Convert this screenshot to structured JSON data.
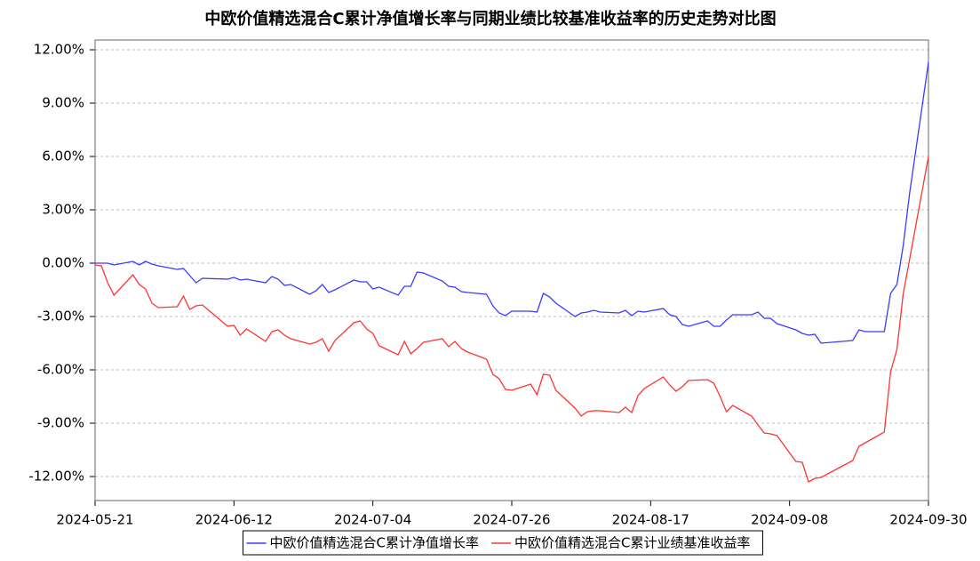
{
  "chart_data": {
    "type": "line",
    "title": "中欧价值精选混合C累计净值增长率与同期业绩比较基准收益率的历史走势对比图",
    "x": [
      "2024-05-21",
      "2024-05-22",
      "2024-05-23",
      "2024-05-24",
      "2024-05-27",
      "2024-05-28",
      "2024-05-29",
      "2024-05-30",
      "2024-05-31",
      "2024-06-03",
      "2024-06-04",
      "2024-06-05",
      "2024-06-06",
      "2024-06-07",
      "2024-06-11",
      "2024-06-12",
      "2024-06-13",
      "2024-06-14",
      "2024-06-17",
      "2024-06-18",
      "2024-06-19",
      "2024-06-20",
      "2024-06-21",
      "2024-06-24",
      "2024-06-25",
      "2024-06-26",
      "2024-06-27",
      "2024-06-28",
      "2024-07-01",
      "2024-07-02",
      "2024-07-03",
      "2024-07-04",
      "2024-07-05",
      "2024-07-08",
      "2024-07-09",
      "2024-07-10",
      "2024-07-11",
      "2024-07-12",
      "2024-07-15",
      "2024-07-16",
      "2024-07-17",
      "2024-07-18",
      "2024-07-19",
      "2024-07-22",
      "2024-07-23",
      "2024-07-24",
      "2024-07-25",
      "2024-07-26",
      "2024-07-29",
      "2024-07-30",
      "2024-07-31",
      "2024-08-01",
      "2024-08-02",
      "2024-08-05",
      "2024-08-06",
      "2024-08-07",
      "2024-08-08",
      "2024-08-09",
      "2024-08-12",
      "2024-08-13",
      "2024-08-14",
      "2024-08-15",
      "2024-08-16",
      "2024-08-19",
      "2024-08-20",
      "2024-08-21",
      "2024-08-22",
      "2024-08-23",
      "2024-08-26",
      "2024-08-27",
      "2024-08-28",
      "2024-08-29",
      "2024-08-30",
      "2024-09-02",
      "2024-09-03",
      "2024-09-04",
      "2024-09-05",
      "2024-09-06",
      "2024-09-09",
      "2024-09-10",
      "2024-09-11",
      "2024-09-12",
      "2024-09-13",
      "2024-09-18",
      "2024-09-19",
      "2024-09-20",
      "2024-09-23",
      "2024-09-24",
      "2024-09-25",
      "2024-09-26",
      "2024-09-27",
      "2024-09-30"
    ],
    "series": [
      {
        "name": "中欧价值精选混合C累计净值增长率",
        "color": "#3b3bff",
        "values": [
          0,
          0,
          0,
          -0.1,
          0.1,
          -0.1,
          0.1,
          -0.05,
          -0.15,
          -0.35,
          -0.3,
          -0.7,
          -1.1,
          -0.85,
          -0.9,
          -0.8,
          -0.95,
          -0.9,
          -1.1,
          -0.75,
          -0.9,
          -1.25,
          -1.2,
          -1.75,
          -1.55,
          -1.2,
          -1.65,
          -1.5,
          -0.95,
          -1.05,
          -1.05,
          -1.45,
          -1.35,
          -1.8,
          -1.3,
          -1.3,
          -0.5,
          -0.55,
          -1.0,
          -1.3,
          -1.35,
          -1.6,
          -1.65,
          -1.75,
          -2.4,
          -2.8,
          -2.95,
          -2.7,
          -2.7,
          -2.75,
          -1.7,
          -1.9,
          -2.25,
          -3.0,
          -2.8,
          -2.75,
          -2.65,
          -2.75,
          -2.8,
          -2.65,
          -2.95,
          -2.7,
          -2.75,
          -2.55,
          -2.9,
          -3.0,
          -3.45,
          -3.55,
          -3.25,
          -3.55,
          -3.55,
          -3.2,
          -2.9,
          -2.9,
          -2.75,
          -3.1,
          -3.1,
          -3.4,
          -3.75,
          -3.95,
          -4.05,
          -4.0,
          -4.5,
          -4.35,
          -3.75,
          -3.85,
          -3.85,
          -1.7,
          -1.2,
          1.0,
          3.9,
          11.3
        ]
      },
      {
        "name": "中欧价值精选混合C累计业绩基准收益率",
        "color": "#ff3333",
        "values": [
          -0.1,
          -0.15,
          -1.1,
          -1.8,
          -0.65,
          -1.2,
          -1.45,
          -2.25,
          -2.5,
          -2.45,
          -1.85,
          -2.6,
          -2.4,
          -2.35,
          -3.55,
          -3.5,
          -4.05,
          -3.7,
          -4.4,
          -3.85,
          -3.75,
          -4.05,
          -4.25,
          -4.55,
          -4.45,
          -4.25,
          -4.95,
          -4.35,
          -3.35,
          -3.25,
          -3.7,
          -3.95,
          -4.65,
          -5.15,
          -4.4,
          -5.1,
          -4.8,
          -4.45,
          -4.25,
          -4.7,
          -4.4,
          -4.8,
          -5.0,
          -5.4,
          -6.25,
          -6.5,
          -7.1,
          -7.15,
          -6.8,
          -7.4,
          -6.25,
          -6.3,
          -7.15,
          -8.15,
          -8.6,
          -8.35,
          -8.3,
          -8.3,
          -8.4,
          -8.1,
          -8.4,
          -7.45,
          -7.05,
          -6.4,
          -6.85,
          -7.2,
          -6.95,
          -6.6,
          -6.55,
          -6.75,
          -7.5,
          -8.35,
          -8.0,
          -8.6,
          -9.1,
          -9.55,
          -9.6,
          -9.7,
          -11.15,
          -11.2,
          -12.3,
          -12.1,
          -12.05,
          -11.1,
          -10.3,
          -10.1,
          -9.5,
          -6.1,
          -4.85,
          -1.7,
          0.2,
          6.0
        ]
      }
    ],
    "xlim": [
      "2024-05-21",
      "2024-09-30"
    ],
    "xticks": [
      "2024-05-21",
      "2024-06-12",
      "2024-07-04",
      "2024-07-26",
      "2024-08-17",
      "2024-09-08",
      "2024-09-30"
    ],
    "ylim": [
      -13.35,
      12.55
    ],
    "yticks": [
      {
        "value": 12,
        "label": "12.00%"
      },
      {
        "value": 9,
        "label": "9.00%"
      },
      {
        "value": 6,
        "label": "6.00%"
      },
      {
        "value": 3,
        "label": "3.00%"
      },
      {
        "value": 0,
        "label": "0.00%"
      },
      {
        "value": -3,
        "label": "-3.00%"
      },
      {
        "value": -6,
        "label": "-6.00%"
      },
      {
        "value": -9,
        "label": "-9.00%"
      },
      {
        "value": -12,
        "label": "-12.00%"
      }
    ],
    "grid": true
  }
}
